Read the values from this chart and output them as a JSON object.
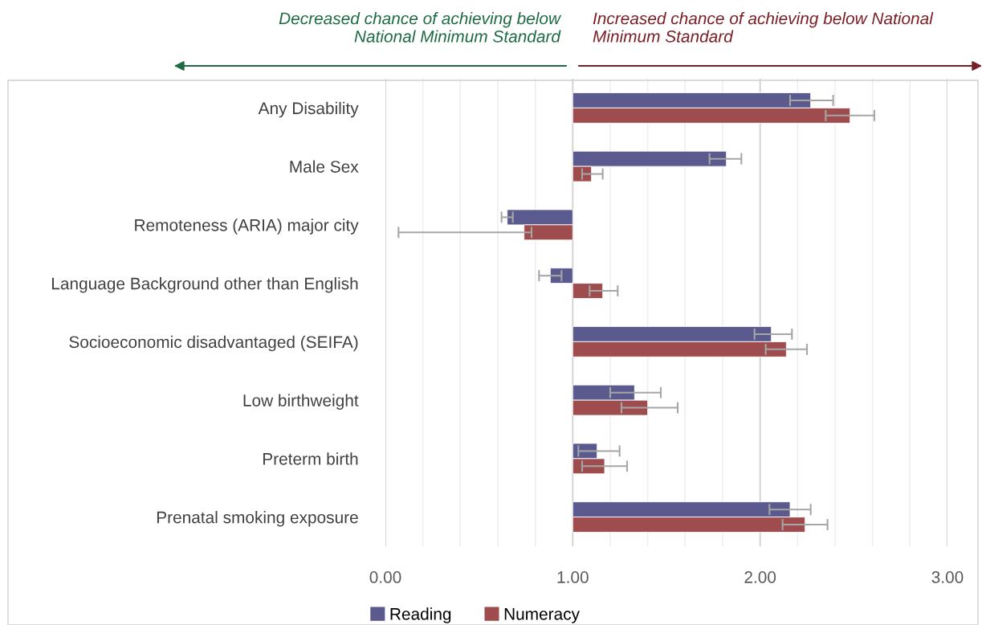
{
  "chart_data": {
    "type": "bar",
    "orientation": "horizontal",
    "annotations": [
      "Decreased chance of achieving below National Minimum Standard",
      "Increased chance of achieving below National Minimum Standard"
    ],
    "categories": [
      "Any Disability",
      "Male Sex",
      "Remoteness (ARIA) major city",
      "Language Background other than English",
      "Socioeconomic disadvantaged (SEIFA)",
      "Low birthweight",
      "Preterm birth",
      "Prenatal smoking exposure"
    ],
    "series": [
      {
        "name": "Reading",
        "color": "#5a5a8f",
        "base": [
          1,
          1,
          1,
          1,
          1,
          1,
          1,
          1
        ],
        "values": [
          1.27,
          0.82,
          -0.35,
          -0.12,
          1.06,
          0.33,
          0.13,
          1.16
        ],
        "errors": [
          [
            2.16,
            2.39
          ],
          [
            1.73,
            1.9
          ],
          [
            0.62,
            0.68
          ],
          [
            0.82,
            0.94
          ],
          [
            1.97,
            2.17
          ],
          [
            1.2,
            1.47
          ],
          [
            1.03,
            1.25
          ],
          [
            2.05,
            2.27
          ]
        ]
      },
      {
        "name": "Numeracy",
        "color": "#9e4c4e",
        "base": [
          1,
          1,
          1,
          1,
          1,
          1,
          1,
          1
        ],
        "values": [
          1.48,
          0.1,
          -0.26,
          0.16,
          1.14,
          0.4,
          0.17,
          1.24
        ],
        "errors": [
          [
            2.35,
            2.61
          ],
          [
            1.05,
            1.16
          ],
          [
            0.07,
            0.78
          ],
          [
            1.09,
            1.24
          ],
          [
            2.03,
            2.25
          ],
          [
            1.26,
            1.56
          ],
          [
            1.05,
            1.29
          ],
          [
            2.12,
            2.36
          ]
        ]
      }
    ],
    "xlim": [
      0,
      3.0
    ],
    "xticks": [
      {
        "value": 0,
        "label": "0.00"
      },
      {
        "value": 0.2,
        "label": null
      },
      {
        "value": 0.4,
        "label": null
      },
      {
        "value": 0.6,
        "label": null
      },
      {
        "value": 0.8,
        "label": null
      },
      {
        "value": 1.0,
        "label": "1.00"
      },
      {
        "value": 1.2,
        "label": null
      },
      {
        "value": 1.4,
        "label": null
      },
      {
        "value": 1.6,
        "label": null
      },
      {
        "value": 1.8,
        "label": null
      },
      {
        "value": 2.0,
        "label": "2.00"
      },
      {
        "value": 2.2,
        "label": null
      },
      {
        "value": 2.4,
        "label": null
      },
      {
        "value": 2.6,
        "label": null
      },
      {
        "value": 2.8,
        "label": null
      },
      {
        "value": 3.0,
        "label": "3.00"
      }
    ],
    "grid": "x",
    "legend": "bottom"
  }
}
